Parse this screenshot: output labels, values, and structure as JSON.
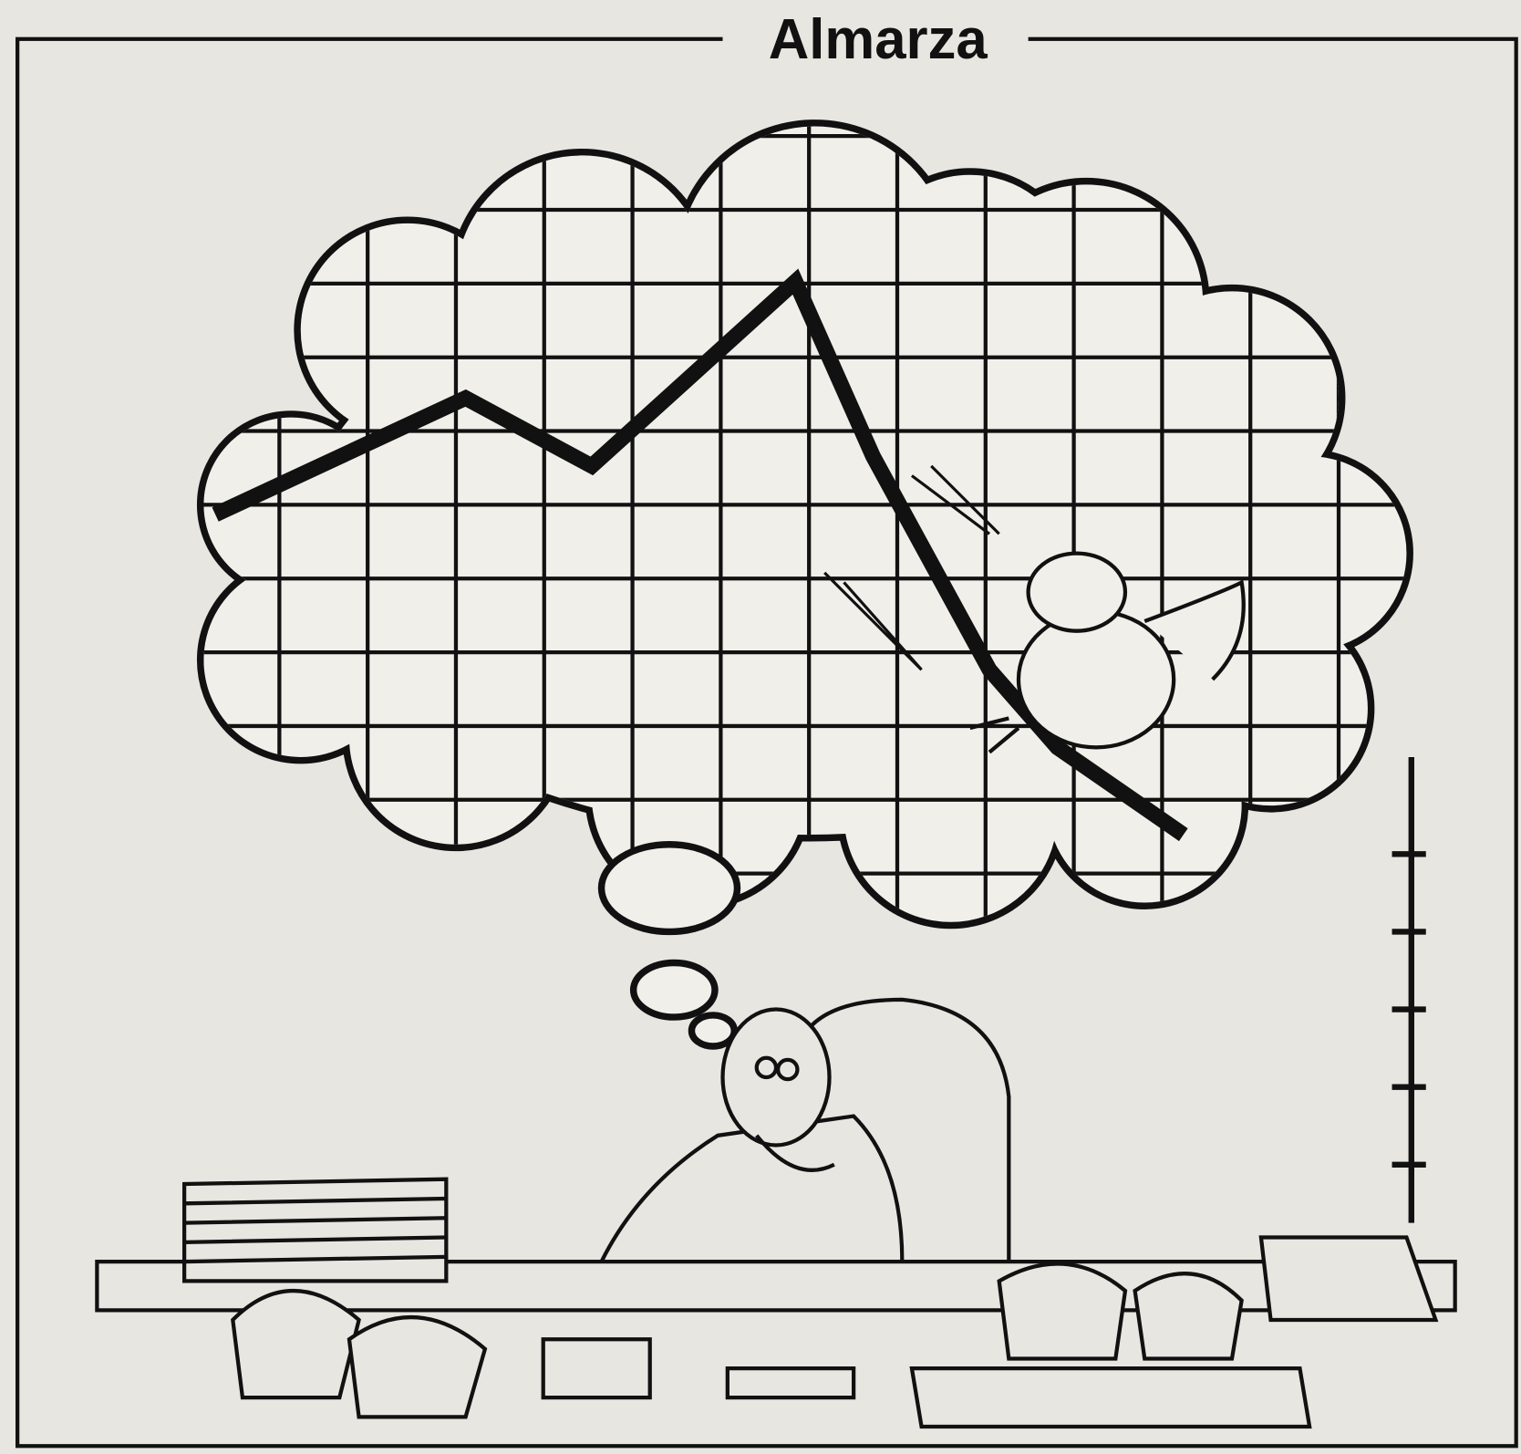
{
  "header": {
    "title": "Almarza"
  }
}
